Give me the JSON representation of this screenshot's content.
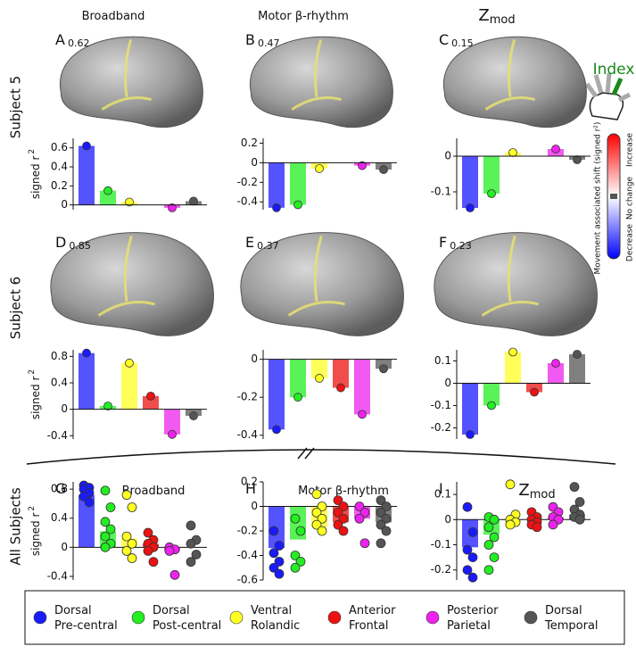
{
  "subjects": [
    "Subject 5",
    "Subject 6",
    "All Subjects"
  ],
  "index_label": "Index",
  "colorbar": {
    "title": "Movement associated shift (signed r²)",
    "top": "Increase",
    "middle": "No change",
    "bottom": "Decrease"
  },
  "legend": [
    {
      "lines": [
        "Dorsal",
        "Pre-central"
      ],
      "color": "#1a1aff"
    },
    {
      "lines": [
        "Dorsal",
        "Post-central"
      ],
      "color": "#22ee22"
    },
    {
      "lines": [
        "Ventral",
        "Rolandic"
      ],
      "color": "#ffff22"
    },
    {
      "lines": [
        "Anterior",
        "Frontal"
      ],
      "color": "#ee1111"
    },
    {
      "lines": [
        "Posterior",
        "Parietal"
      ],
      "color": "#ee22ee"
    },
    {
      "lines": [
        "Dorsal",
        "Temporal"
      ],
      "color": "#555555"
    }
  ],
  "chart_data": [
    {
      "type": "bar",
      "panel": "A",
      "brain_value": 0.62,
      "title": "Broadband",
      "ylabel": "signed r",
      "ylabel_sup": "2",
      "values": [
        0.62,
        0.15,
        0.03,
        null,
        -0.03,
        0.04
      ],
      "ylim": [
        -0.05,
        0.7
      ],
      "yticks": [
        0,
        0.2,
        0.4,
        0.6
      ]
    },
    {
      "type": "bar",
      "panel": "B",
      "brain_value": 0.47,
      "title": "Motor β-rhythm",
      "values": [
        -0.46,
        -0.43,
        -0.06,
        null,
        -0.03,
        -0.07
      ],
      "ylim": [
        -0.48,
        0.25
      ],
      "yticks": [
        -0.4,
        -0.2,
        0,
        0.2
      ]
    },
    {
      "type": "bar",
      "panel": "C",
      "brain_value": 0.15,
      "title": "Z",
      "title_sub": "mod",
      "values": [
        -0.145,
        -0.105,
        0.01,
        null,
        0.02,
        -0.01
      ],
      "ylim": [
        -0.15,
        0.05
      ],
      "yticks": [
        -0.1,
        0
      ]
    },
    {
      "type": "bar",
      "panel": "D",
      "brain_value": 0.85,
      "ylabel": "signed r",
      "ylabel_sup": "2",
      "values": [
        0.85,
        0.05,
        0.7,
        0.2,
        -0.38,
        -0.1
      ],
      "ylim": [
        -0.45,
        0.9
      ],
      "yticks": [
        -0.4,
        0,
        0.4,
        0.8
      ]
    },
    {
      "type": "bar",
      "panel": "E",
      "brain_value": 0.37,
      "values": [
        -0.37,
        -0.2,
        -0.1,
        -0.15,
        -0.29,
        -0.05
      ],
      "ylim": [
        -0.42,
        0.05
      ],
      "yticks": [
        -0.4,
        -0.2,
        0
      ]
    },
    {
      "type": "bar",
      "panel": "F",
      "brain_value": 0.23,
      "values": [
        -0.23,
        -0.1,
        0.14,
        -0.04,
        0.09,
        0.13
      ],
      "ylim": [
        -0.25,
        0.15
      ],
      "yticks": [
        -0.2,
        -0.1,
        0,
        0.1
      ]
    },
    {
      "type": "barpoints",
      "panel": "G",
      "title": "Broadband",
      "ylabel": "signed r",
      "ylabel_sup": "2",
      "values": [
        0.72,
        0.22,
        0.12,
        0.05,
        -0.05,
        0.0
      ],
      "ylim": [
        -0.45,
        0.9
      ],
      "yticks": [
        -0.4,
        0,
        0.4,
        0.8
      ],
      "points": [
        [
          0.85,
          0.82,
          0.8,
          0.75,
          0.7,
          0.62
        ],
        [
          0.78,
          0.55,
          0.35,
          0.25,
          0.15,
          0.05,
          0.0
        ],
        [
          0.72,
          0.55,
          0.15,
          0.05,
          -0.05,
          -0.15
        ],
        [
          0.2,
          0.1,
          0.05,
          0,
          -0.05,
          -0.2
        ],
        [
          0,
          -0.03,
          -0.05,
          -0.38
        ],
        [
          0.3,
          0.1,
          0.05,
          -0.1,
          -0.2
        ]
      ]
    },
    {
      "type": "barpoints",
      "panel": "H",
      "title": "Motor β-rhythm",
      "values": [
        -0.34,
        -0.27,
        -0.17,
        -0.13,
        -0.1,
        -0.13
      ],
      "ylim": [
        -0.6,
        0.2
      ],
      "yticks": [
        -0.6,
        -0.4,
        -0.2,
        0,
        0.2
      ],
      "points": [
        [
          -0.2,
          -0.32,
          -0.38,
          -0.45,
          -0.5,
          -0.55
        ],
        [
          -0.1,
          -0.2,
          -0.4,
          -0.45,
          -0.5
        ],
        [
          0.1,
          0,
          -0.05,
          -0.1,
          -0.15,
          -0.2
        ],
        [
          0.05,
          0,
          -0.05,
          -0.1,
          -0.15,
          -0.2
        ],
        [
          0,
          -0.05,
          -0.1,
          -0.3
        ],
        [
          0.05,
          0,
          -0.05,
          -0.1,
          -0.15,
          -0.2,
          -0.3
        ]
      ]
    },
    {
      "type": "barpoints",
      "panel": "I",
      "title": "Z",
      "title_sub": "mod",
      "values": [
        -0.11,
        -0.06,
        -0.01,
        0.0,
        0.01,
        0.02
      ],
      "ylim": [
        -0.24,
        0.15
      ],
      "yticks": [
        -0.2,
        -0.1,
        0,
        0.1
      ],
      "points": [
        [
          0.05,
          -0.05,
          -0.12,
          -0.15,
          -0.2,
          -0.23
        ],
        [
          0.01,
          0,
          -0.03,
          -0.07,
          -0.1,
          -0.15,
          -0.2
        ],
        [
          0.14,
          0.02,
          0,
          -0.01,
          -0.02
        ],
        [
          0.03,
          0.01,
          0,
          -0.01,
          -0.02,
          -0.03
        ],
        [
          0.05,
          0.03,
          0.01,
          0,
          -0.02
        ],
        [
          0.13,
          0.07,
          0.04,
          0.02,
          0.01,
          0
        ]
      ]
    }
  ]
}
